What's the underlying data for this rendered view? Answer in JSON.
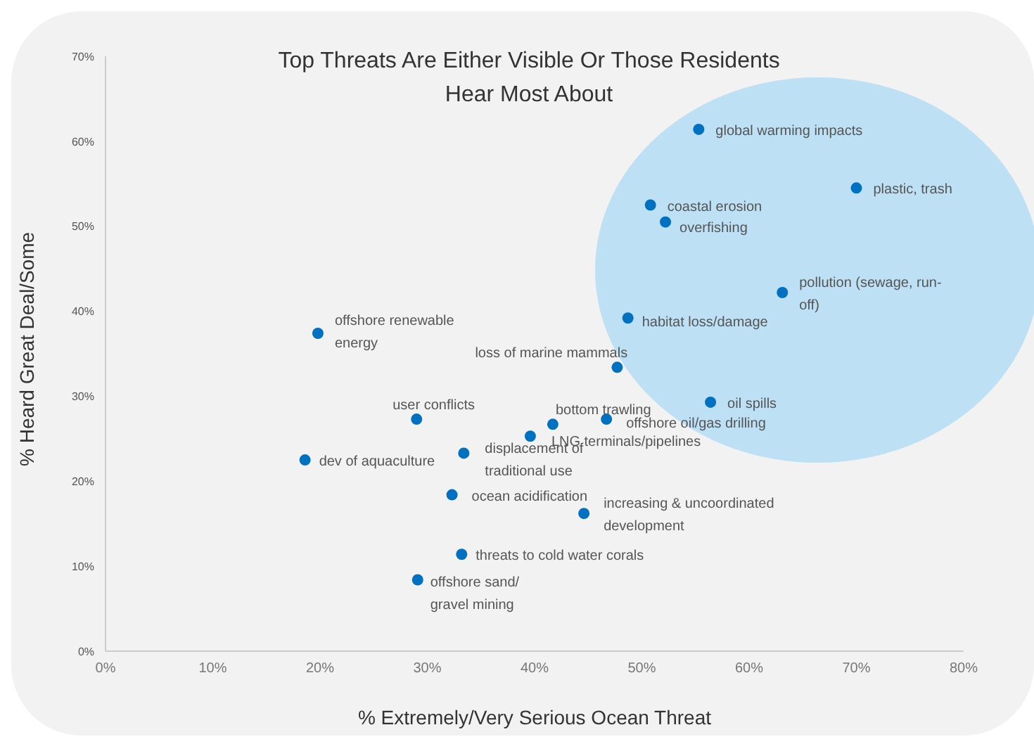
{
  "chart_data": {
    "type": "scatter",
    "title": "Top Threats Are Either Visible Or Those Residents Hear Most About",
    "xlabel": "% Extremely/Very Serious Ocean Threat",
    "ylabel": "% Heard Great Deal/Some",
    "x": [
      55.3,
      70,
      50.8,
      52.2,
      63.1,
      48.7,
      19.8,
      47.7,
      56.4,
      29,
      41.7,
      46.7,
      39.6,
      33.4,
      18.6,
      32.3,
      44.6,
      33.2,
      29.1
    ],
    "values": [
      61.4,
      54.5,
      52.5,
      50.5,
      42.2,
      39.2,
      37.4,
      33.4,
      29.3,
      27.3,
      26.7,
      27.3,
      25.3,
      23.3,
      22.5,
      18.4,
      16.2,
      11.4,
      8.4
    ],
    "color": "#0070c0",
    "marker": "circle",
    "xlim": [
      0,
      80
    ],
    "xticks": [
      {
        "value": 0,
        "label": "0%"
      },
      {
        "value": 10,
        "label": "10%"
      },
      {
        "value": 20,
        "label": "20%"
      },
      {
        "value": 30,
        "label": "30%"
      },
      {
        "value": 40,
        "label": "40%"
      },
      {
        "value": 50,
        "label": "50%"
      },
      {
        "value": 60,
        "label": "60%"
      },
      {
        "value": 70,
        "label": "70%"
      },
      {
        "value": 80,
        "label": "80%"
      }
    ],
    "ylim": [
      0,
      70
    ],
    "yticks": [
      {
        "value": 0,
        "label": "0%"
      },
      {
        "value": 10,
        "label": "10%"
      },
      {
        "value": 20,
        "label": "20%"
      },
      {
        "value": 30,
        "label": "30%"
      },
      {
        "value": 40,
        "label": "40%"
      },
      {
        "value": 50,
        "label": "50%"
      },
      {
        "value": 60,
        "label": "60%"
      },
      {
        "value": 70,
        "label": "70%"
      }
    ],
    "annotations": [
      {
        "text": "global warming impacts",
        "x": 55.3,
        "y": 61.4
      },
      {
        "text": "plastic, trash",
        "x": 70,
        "y": 54.5
      },
      {
        "text": "coastal erosion",
        "x": 50.8,
        "y": 52.5
      },
      {
        "text": "overfishing",
        "x": 52.2,
        "y": 50.5
      },
      {
        "text": "pollution (sewage, run-off)",
        "x": 63.1,
        "y": 42.2
      },
      {
        "text": "habitat loss/damage",
        "x": 48.7,
        "y": 39.2
      },
      {
        "text": "offshore renewable energy",
        "x": 19.8,
        "y": 37.4
      },
      {
        "text": "loss of marine mammals",
        "x": 47.7,
        "y": 33.4
      },
      {
        "text": "oil spills",
        "x": 56.4,
        "y": 29.3
      },
      {
        "text": "user conflicts",
        "x": 29,
        "y": 27.3
      },
      {
        "text": "bottom trawling",
        "x": 41.7,
        "y": 26.7
      },
      {
        "text": "offshore oil/gas drilling",
        "x": 46.7,
        "y": 27.3
      },
      {
        "text": "LNG terminals/pipelines",
        "x": 39.6,
        "y": 25.3
      },
      {
        "text": "displacement of traditional use",
        "x": 33.4,
        "y": 23.3
      },
      {
        "text": "dev of aquaculture",
        "x": 18.6,
        "y": 22.5
      },
      {
        "text": "ocean acidification",
        "x": 32.3,
        "y": 18.4
      },
      {
        "text": "increasing & uncoordinated development",
        "x": 44.6,
        "y": 16.2
      },
      {
        "text": "threats to cold water corals",
        "x": 33.2,
        "y": 11.4
      },
      {
        "text": "offshore sand/gravel mining",
        "x": 29.1,
        "y": 8.4
      }
    ]
  }
}
